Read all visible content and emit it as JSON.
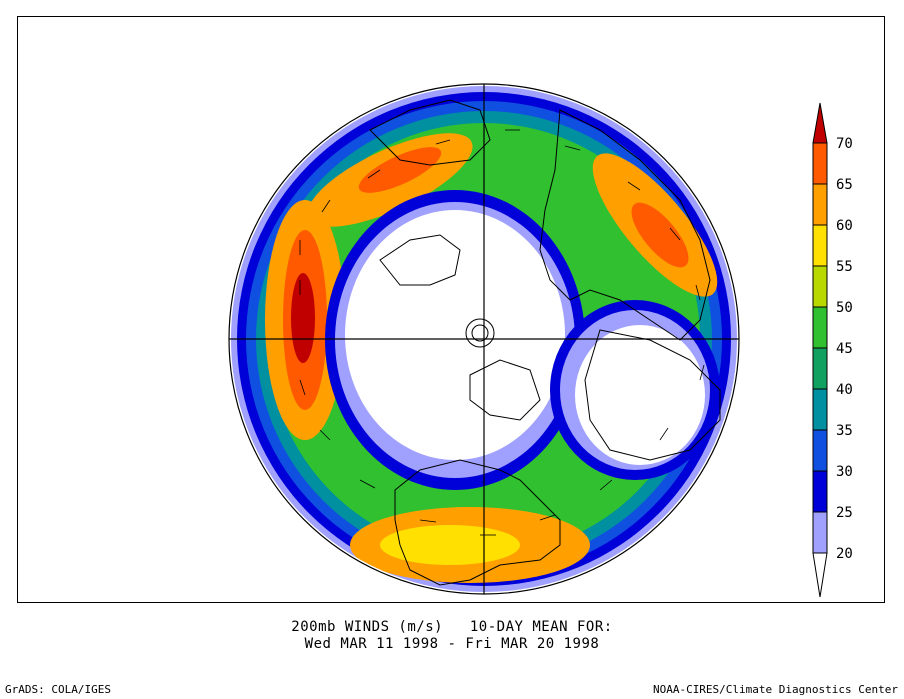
{
  "title": {
    "line1": "200mb WINDS (m/s)   10-DAY MEAN FOR:",
    "line2": "Wed MAR 11 1998 - Fri MAR 20 1998"
  },
  "credits": {
    "left": "GrADS: COLA/IGES",
    "right": "NOAA-CIRES/Climate Diagnostics Center"
  },
  "colorbar": {
    "levels": [
      "70",
      "65",
      "60",
      "55",
      "50",
      "45",
      "40",
      "35",
      "30",
      "25",
      "20"
    ],
    "colors": {
      "above_70": "#c00000",
      "65_70": "#ff5a00",
      "60_65": "#ffa000",
      "55_60": "#ffe000",
      "50_55": "#b8d800",
      "45_50": "#30c030",
      "40_45": "#10a060",
      "35_40": "#0090a0",
      "30_35": "#1050e0",
      "25_30": "#0000d8",
      "20_25": "#a0a0ff",
      "below_20": "#ffffff"
    }
  },
  "map": {
    "projection": "north-polar-stereographic",
    "variable": "200mb wind speed",
    "units": "m/s"
  }
}
